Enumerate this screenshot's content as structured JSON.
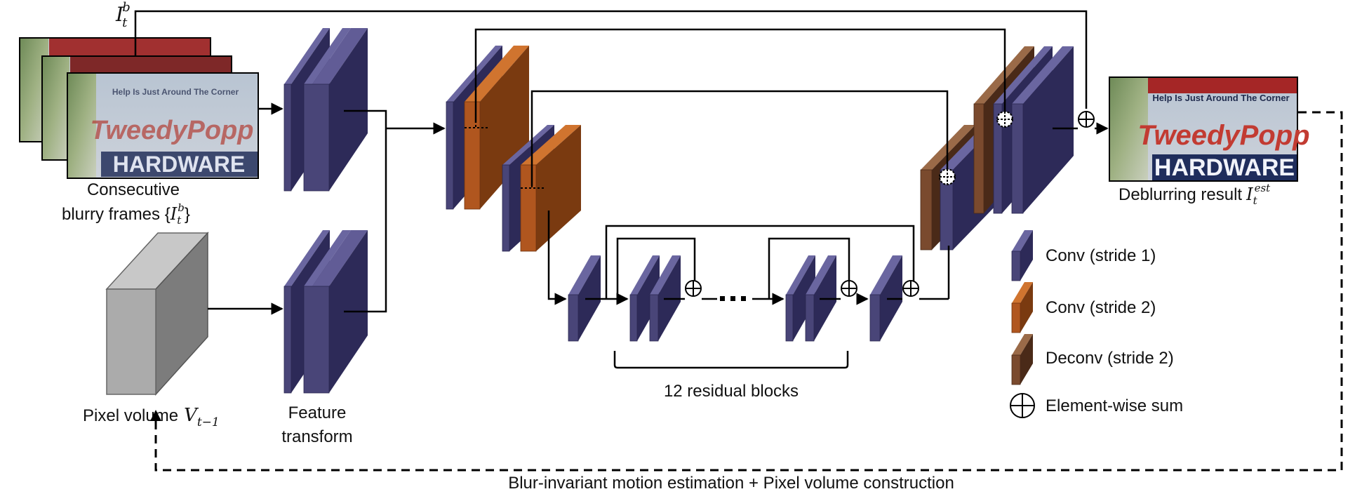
{
  "labels": {
    "input_symbol_base": "I",
    "input_symbol_sub": "t",
    "input_symbol_sup": "b",
    "input_caption_line1": "Consecutive",
    "input_caption_line2": "blurry frames {",
    "input_caption_set_close": "}",
    "pixel_volume_caption": "Pixel volume",
    "pixel_volume_symbol": "V",
    "pixel_volume_sub": "t−1",
    "feature_transform_line1": "Feature",
    "feature_transform_line2": "transform",
    "residual_caption": "12 residual blocks",
    "output_caption": "Deblurring result",
    "output_symbol_base": "I",
    "output_symbol_sub": "t",
    "output_symbol_sup": "est",
    "feedback_caption": "Blur-invariant motion estimation + Pixel volume construction"
  },
  "frame_text": {
    "line_top": "Help Is Just Around The Corner",
    "brand": "TweedyPopp",
    "store": "HARDWARE"
  },
  "legend": [
    {
      "label": "Conv (stride 1)",
      "kind": "conv1"
    },
    {
      "label": "Conv (stride 2)",
      "kind": "conv2"
    },
    {
      "label": "Deconv (stride 2)",
      "kind": "deconv"
    },
    {
      "label": "Element-wise sum",
      "kind": "sum"
    }
  ],
  "colors": {
    "conv1": "#494578",
    "conv2": "#b0561f",
    "deconv": "#7a4a2e",
    "volume": "#a9a9a9",
    "line": "#000000"
  }
}
